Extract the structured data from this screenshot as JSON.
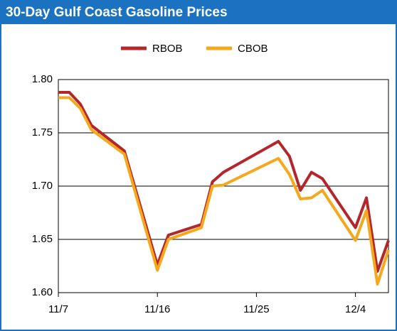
{
  "chart_data": {
    "type": "line",
    "title": "30-Day Gulf Coast Gasoline Prices",
    "x": [
      0,
      1,
      2,
      3,
      6,
      9,
      10,
      13,
      14,
      15,
      20,
      21,
      22,
      23,
      24,
      27,
      28,
      29,
      30
    ],
    "xlim": [
      0,
      30
    ],
    "xticks": [
      {
        "value": 0,
        "label": "11/7"
      },
      {
        "value": 9,
        "label": "11/16"
      },
      {
        "value": 18,
        "label": "11/25"
      },
      {
        "value": 27,
        "label": "12/4"
      }
    ],
    "ylim": [
      1.6,
      1.8
    ],
    "yticks": [
      {
        "value": 1.6,
        "label": "1.60"
      },
      {
        "value": 1.65,
        "label": "1.65"
      },
      {
        "value": 1.7,
        "label": "1.70"
      },
      {
        "value": 1.75,
        "label": "1.75"
      },
      {
        "value": 1.8,
        "label": "1.80"
      }
    ],
    "grid": true,
    "legend": "top",
    "series": [
      {
        "name": "RBOB",
        "color": "#b5262b",
        "values": [
          1.788,
          1.788,
          1.777,
          1.757,
          1.733,
          1.626,
          1.654,
          1.664,
          1.704,
          1.713,
          1.742,
          1.728,
          1.696,
          1.713,
          1.707,
          1.661,
          1.689,
          1.62,
          1.649
        ]
      },
      {
        "name": "CBOB",
        "color": "#f5a81c",
        "values": [
          1.783,
          1.783,
          1.773,
          1.753,
          1.73,
          1.621,
          1.65,
          1.661,
          1.7,
          1.701,
          1.726,
          1.711,
          1.688,
          1.689,
          1.696,
          1.649,
          1.677,
          1.608,
          1.64
        ]
      }
    ]
  }
}
